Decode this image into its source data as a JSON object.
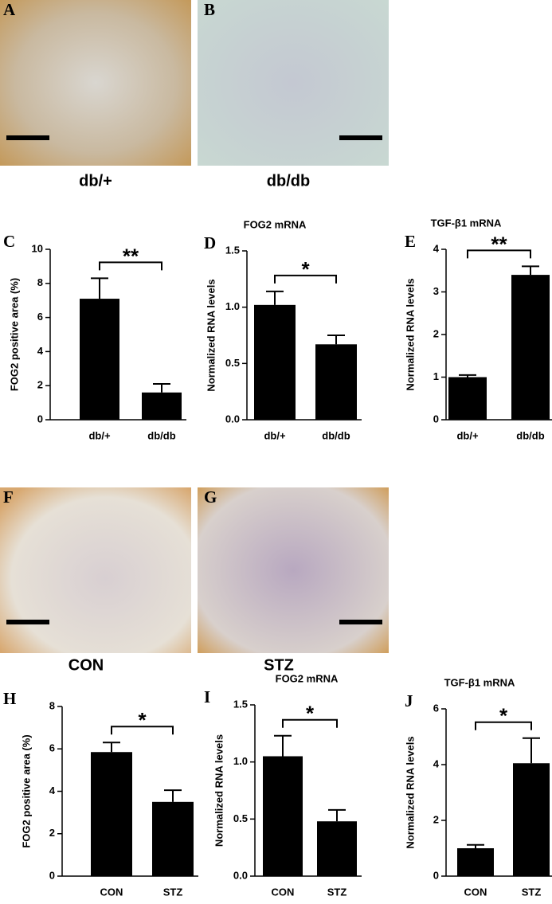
{
  "images": [
    {
      "letter": "A",
      "caption": "db/+"
    },
    {
      "letter": "B",
      "caption": "db/db"
    },
    {
      "letter": "F",
      "caption": "CON"
    },
    {
      "letter": "G",
      "caption": "STZ"
    }
  ],
  "chart_data": [
    {
      "type": "bar",
      "letter": "C",
      "ylabel": "FOG2 positive area (%)",
      "categories": [
        "db/+",
        "db/db"
      ],
      "values": [
        7.1,
        1.6
      ],
      "errors": [
        1.2,
        0.5
      ],
      "ylim": [
        0,
        10
      ],
      "yticks": [
        0,
        2,
        4,
        6,
        8,
        10
      ],
      "annotation": "**",
      "color": "#000000"
    },
    {
      "type": "bar",
      "letter": "D",
      "title": "FOG2 mRNA",
      "ylabel": "Normalized RNA levels",
      "categories": [
        "db/+",
        "db/db"
      ],
      "values": [
        1.02,
        0.67
      ],
      "errors": [
        0.12,
        0.08
      ],
      "ylim": [
        0,
        1.5
      ],
      "yticks": [
        {
          "value": 0,
          "label": "0.0"
        },
        {
          "value": 0.5,
          "label": "0.5"
        },
        {
          "value": 1,
          "label": "1.0"
        },
        {
          "value": 1.5,
          "label": "1.5"
        }
      ],
      "annotation": "*",
      "color": "#000000"
    },
    {
      "type": "bar",
      "letter": "E",
      "title": "TGF-β1 mRNA",
      "ylabel": "Normalized RNA levels",
      "categories": [
        "db/+",
        "db/db"
      ],
      "values": [
        1.0,
        3.4
      ],
      "errors": [
        0.05,
        0.2
      ],
      "ylim": [
        0,
        4
      ],
      "yticks": [
        0,
        1,
        2,
        3,
        4
      ],
      "annotation": "**",
      "color": "#000000"
    },
    {
      "type": "bar",
      "letter": "H",
      "ylabel": "FOG2 positive area (%)",
      "categories": [
        "CON",
        "STZ"
      ],
      "values": [
        5.85,
        3.5
      ],
      "errors": [
        0.45,
        0.55
      ],
      "ylim": [
        0,
        8
      ],
      "yticks": [
        0,
        2,
        4,
        6,
        8
      ],
      "annotation": "*",
      "color": "#000000"
    },
    {
      "type": "bar",
      "letter": "I",
      "title": "FOG2 mRNA",
      "ylabel": "Normalized RNA levels",
      "categories": [
        "CON",
        "STZ"
      ],
      "values": [
        1.05,
        0.48
      ],
      "errors": [
        0.18,
        0.1
      ],
      "ylim": [
        0,
        1.5
      ],
      "yticks": [
        {
          "value": 0,
          "label": "0.0"
        },
        {
          "value": 0.5,
          "label": "0.5"
        },
        {
          "value": 1,
          "label": "1.0"
        },
        {
          "value": 1.5,
          "label": "1.5"
        }
      ],
      "annotation": "*",
      "color": "#000000"
    },
    {
      "type": "bar",
      "letter": "J",
      "title": "TGF-β1 mRNA",
      "ylabel": "Normalized RNA levels",
      "categories": [
        "CON",
        "STZ"
      ],
      "values": [
        1.0,
        4.05
      ],
      "errors": [
        0.12,
        0.9
      ],
      "ylim": [
        0,
        6
      ],
      "yticks": [
        0,
        2,
        4,
        6
      ],
      "annotation": "*",
      "color": "#000000"
    }
  ]
}
